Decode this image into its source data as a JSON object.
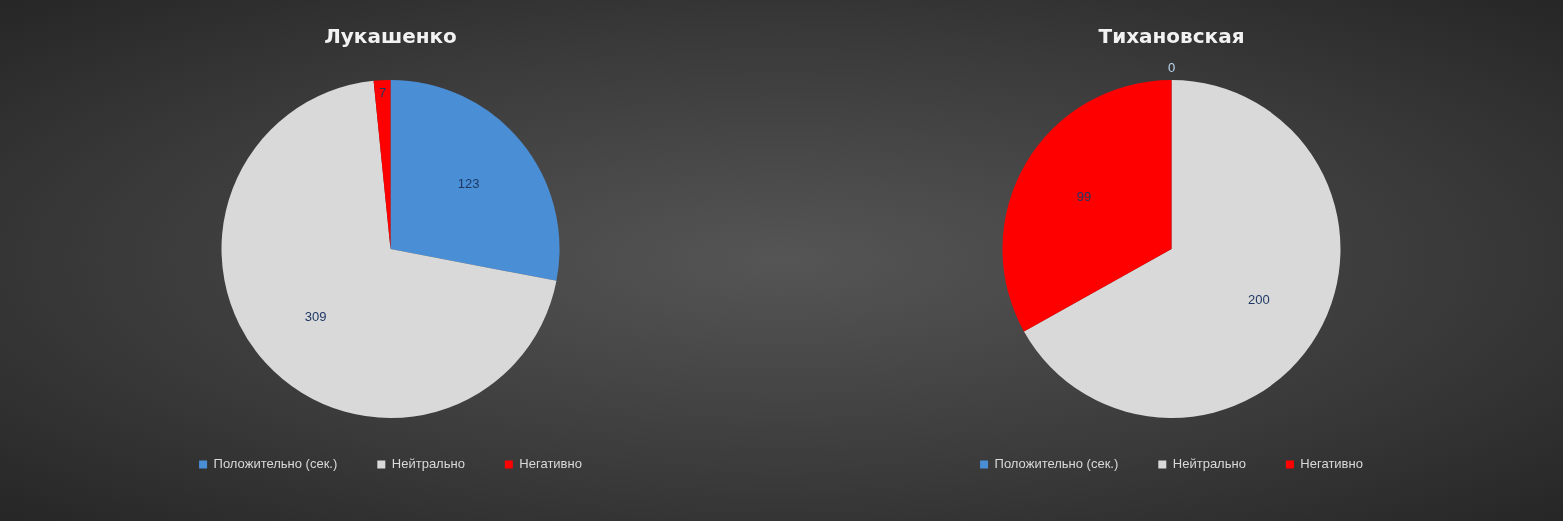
{
  "chart_data": [
    {
      "type": "pie",
      "title": "Лукашенко",
      "categories": [
        "Положительно (сек.)",
        "Нейтрально",
        "Негативно"
      ],
      "values": [
        123,
        309,
        7
      ],
      "colors": [
        "#4a8fd6",
        "#d9d9d9",
        "#ff0000"
      ],
      "data_labels": true,
      "legend": "bottom"
    },
    {
      "type": "pie",
      "title": "Тихановская",
      "categories": [
        "Положительно (сек.)",
        "Нейтрально",
        "Негативно"
      ],
      "values": [
        0,
        200,
        99
      ],
      "value_labels": [
        "0",
        "200",
        "99"
      ],
      "colors": [
        "#4a8fd6",
        "#d9d9d9",
        "#ff0000"
      ],
      "legend": "bottom"
    }
  ]
}
